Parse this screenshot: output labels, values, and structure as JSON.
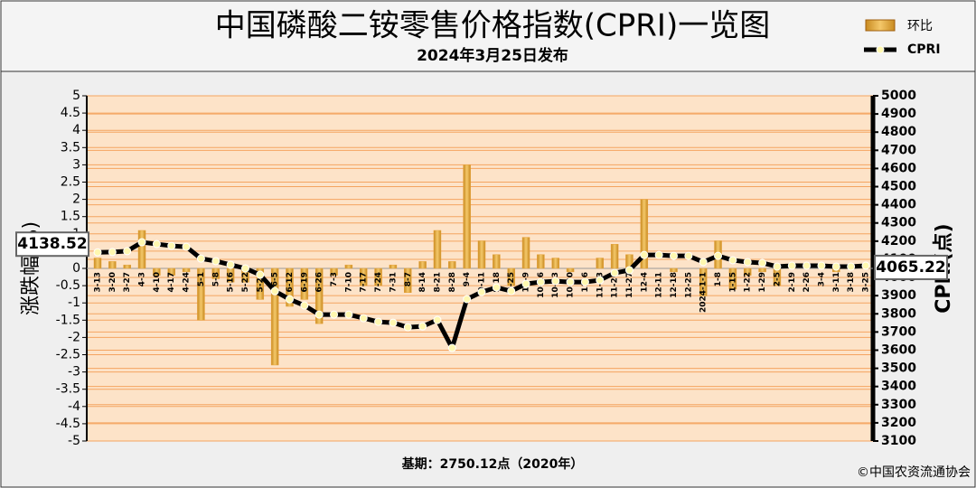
{
  "chart_data": {
    "type": "bar",
    "title": "中国磷酸二铵零售价格指数(CPRI)一览图",
    "subtitle": "2024年3月25日发布",
    "y_label": "涨跌幅(%)",
    "y2_label": "CPRI(点)",
    "note": "基期：2750.12点（2020年）",
    "source": "©中国农资流通协会",
    "categories": [
      "3-13",
      "3-20",
      "3-27",
      "4-3",
      "4-10",
      "4-17",
      "4-24",
      "5-1",
      "5-8",
      "5-16",
      "5-22",
      "5-29",
      "6-5",
      "6-12",
      "6-19",
      "6-26",
      "7-3",
      "7-10",
      "7-17",
      "7-24",
      "7-31",
      "8-7",
      "8-14",
      "8-21",
      "8-28",
      "9-4",
      "9-11",
      "9-18",
      "9-25",
      "10-9",
      "10-16",
      "10-23",
      "10-30",
      "11-6",
      "11-13",
      "11-20",
      "11-27",
      "12-4",
      "12-11",
      "12-18",
      "12-25",
      "2024-1-1",
      "1-8",
      "1-15",
      "1-22",
      "1-29",
      "2-5",
      "2-19",
      "2-26",
      "3-4",
      "3-11",
      "3-18",
      "3-25"
    ],
    "series": [
      {
        "name": "环比",
        "type": "bar",
        "color": "#e8a33a",
        "values": [
          0.3,
          0.2,
          0.1,
          1.1,
          -0.2,
          -0.2,
          -0.1,
          -1.5,
          -0.3,
          -0.4,
          -0.4,
          -0.9,
          -2.8,
          -1.1,
          -0.9,
          -1.6,
          -0.2,
          0.1,
          -0.5,
          -0.5,
          0.1,
          -0.7,
          0.2,
          1.1,
          0.2,
          3.0,
          0.8,
          0.4,
          -0.5,
          0.9,
          0.4,
          0.3,
          -0.1,
          0.0,
          0.3,
          0.7,
          0.4,
          2.0,
          0.0,
          -0.1,
          0.0,
          -0.8,
          0.8,
          -0.6,
          -0.2,
          -0.1,
          -0.5,
          0.1,
          0.0,
          0.0,
          -0.1,
          0.0,
          0.1
        ]
      },
      {
        "name": "CPRI",
        "type": "line",
        "axis": "y2",
        "color": "#000000",
        "values": [
          4138.52,
          4140,
          4145,
          4194,
          4184,
          4174,
          4169,
          4104,
          4090,
          4070,
          4050,
          4015,
          3925,
          3880,
          3846,
          3796,
          3796,
          3796,
          3776,
          3756,
          3751,
          3726,
          3731,
          3766,
          3612,
          3881,
          3920,
          3945,
          3925,
          3965,
          3975,
          3980,
          3975,
          3975,
          3985,
          4025,
          4040,
          4124,
          4124,
          4119,
          4119,
          4085,
          4119,
          4095,
          4085,
          4080,
          4060,
          4065,
          4065,
          4065,
          4060,
          4060,
          4065.22
        ]
      }
    ],
    "ylim": [
      -5,
      5
    ],
    "yticks": [
      -5,
      -4.5,
      -4,
      -3.5,
      -3,
      -2.5,
      -2,
      -1.5,
      -1,
      -0.5,
      0,
      0.5,
      1,
      1.5,
      2,
      2.5,
      3,
      3.5,
      4,
      4.5,
      5
    ],
    "y2lim": [
      3100,
      5000
    ],
    "y2ticks": [
      3100,
      3200,
      3300,
      3400,
      3500,
      3600,
      3700,
      3800,
      3900,
      4000,
      4100,
      4200,
      4300,
      4400,
      4500,
      4600,
      4700,
      4800,
      4900,
      5000
    ],
    "grid": true
  }
}
